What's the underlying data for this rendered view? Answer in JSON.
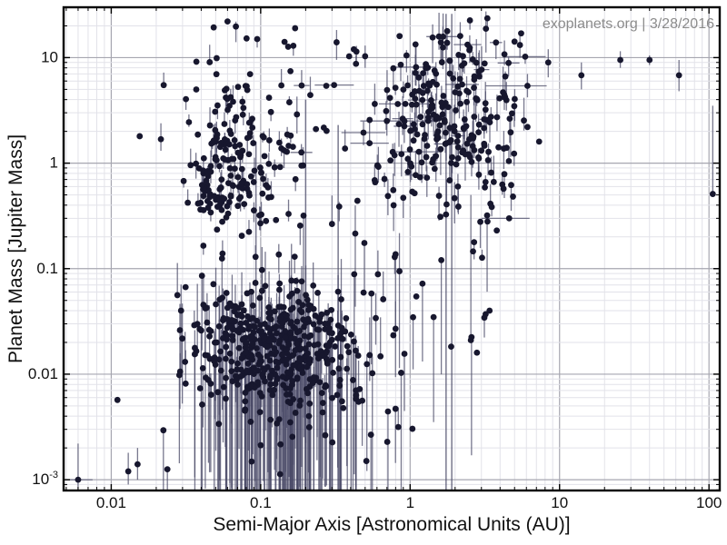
{
  "watermark": {
    "text": "exoplanets.org | 3/28/2016",
    "color": "#8b8b8b"
  },
  "chart_data": {
    "type": "scatter",
    "title": "",
    "xlabel": "Semi-Major Axis [Astronomical Units (AU)]",
    "ylabel": "Planet Mass [Jupiter Mass]",
    "x_scale": "log",
    "y_scale": "log",
    "xlim": [
      0.0048,
      118
    ],
    "ylim": [
      0.00079,
      30
    ],
    "grid": true,
    "legend": "none",
    "x_ticks": [
      {
        "v": 0.01,
        "label": "0.01"
      },
      {
        "v": 0.1,
        "label": "0.1"
      },
      {
        "v": 1,
        "label": "1"
      },
      {
        "v": 10,
        "label": "10"
      },
      {
        "v": 100,
        "label": "100"
      }
    ],
    "y_ticks": [
      {
        "v": 10,
        "label": "10"
      },
      {
        "v": 1,
        "label": "1"
      },
      {
        "v": 0.1,
        "label": "0.1"
      },
      {
        "v": 0.01,
        "label": "0.01"
      },
      {
        "v": 0.001,
        "label": "10",
        "sup": "-3"
      }
    ],
    "description": "Mass vs semi-major axis for ~1000 confirmed exoplanets: a hot-Jupiter cluster near 0.05 AU / 1 MJup, a dense low-mass cluster near 0.1 AU / 0.02 MJup with long downward mass error bars, and a giant-planet cluster near 1-4 AU / 1-10 MJup, plus sparse wide-orbit outliers to ~100 AU.",
    "style": {
      "point_color": "#17172e",
      "error_color": "#4b4b68",
      "error_opacity": 0.75,
      "grid_minor": "#e2e2e9",
      "grid_major": "#a6a6b0",
      "frame_color": "#000000",
      "tick_color": "#000000",
      "text_color": "#111111",
      "background": "#ffffff",
      "point_radius": 3.4
    },
    "seed": 42,
    "point_clusters": [
      {
        "name": "hot_jupiters_core",
        "n": 120,
        "x": {
          "type": "normal",
          "mu": -1.23,
          "sd": 0.14,
          "min": -1.72,
          "max": -0.8
        },
        "y": {
          "type": "normal",
          "mu": -0.08,
          "sd": 0.32,
          "min": -1.05,
          "max": 1.0
        },
        "err": {
          "p_down": 0.45,
          "down": [
            0.04,
            0.16
          ],
          "p_up": 0.45,
          "up": [
            0.04,
            0.16
          ],
          "p_x": 0,
          "xe": [
            0,
            0
          ]
        }
      },
      {
        "name": "hot_jupiters_halo",
        "n": 75,
        "x": {
          "type": "normal",
          "mu": -1.12,
          "sd": 0.26,
          "min": -1.8,
          "max": -0.55
        },
        "y": {
          "type": "normal",
          "mu": 0.3,
          "sd": 0.55,
          "min": -1.0,
          "max": 1.35
        },
        "err": {
          "p_down": 0.35,
          "down": [
            0.04,
            0.18
          ],
          "p_up": 0.35,
          "up": [
            0.04,
            0.18
          ],
          "p_x": 0,
          "xe": [
            0,
            0
          ]
        }
      },
      {
        "name": "low_mass_core",
        "n": 340,
        "x": {
          "type": "normal",
          "mu": -0.97,
          "sd": 0.25,
          "min": -1.6,
          "max": -0.25
        },
        "y": {
          "type": "normal",
          "mu": -1.72,
          "sd": 0.32,
          "min": -2.5,
          "max": -1.05
        },
        "err": {
          "p_down": 0.55,
          "down": [
            0.2,
            2.3
          ],
          "p_up": 0.4,
          "up": [
            0.08,
            0.45
          ],
          "p_x": 0,
          "xe": [
            0,
            0
          ]
        }
      },
      {
        "name": "low_mass_halo",
        "n": 140,
        "x": {
          "type": "normal",
          "mu": -0.8,
          "sd": 0.45,
          "min": -1.7,
          "max": 0.15
        },
        "y": {
          "type": "normal",
          "mu": -1.9,
          "sd": 0.55,
          "min": -3.05,
          "max": -1.0
        },
        "err": {
          "p_down": 0.5,
          "down": [
            0.15,
            2.0
          ],
          "p_up": 0.35,
          "up": [
            0.08,
            0.4
          ],
          "p_x": 0,
          "xe": [
            0,
            0
          ]
        }
      },
      {
        "name": "giants_core",
        "n": 210,
        "x": {
          "type": "normal",
          "mu": 0.27,
          "sd": 0.26,
          "min": -0.3,
          "max": 0.82
        },
        "y": {
          "type": "normal",
          "mu": 0.38,
          "sd": 0.45,
          "min": -0.6,
          "max": 1.3
        },
        "err": {
          "p_down": 0.55,
          "down": [
            0.05,
            0.25
          ],
          "p_up": 0.55,
          "up": [
            0.05,
            0.25
          ],
          "p_x": 0.07,
          "xe": [
            0.03,
            0.2
          ]
        }
      },
      {
        "name": "giants_top_band",
        "n": 25,
        "x": {
          "type": "normal",
          "mu": 0.35,
          "sd": 0.28,
          "min": -0.15,
          "max": 0.8
        },
        "y": {
          "type": "normal",
          "mu": 0.95,
          "sd": 0.2,
          "min": 0.55,
          "max": 1.38
        },
        "err": {
          "p_down": 0.5,
          "down": [
            0.04,
            0.15
          ],
          "p_up": 0.5,
          "up": [
            0.04,
            0.15
          ],
          "p_x": 0.05,
          "xe": [
            0.03,
            0.15
          ]
        }
      },
      {
        "name": "mid_background",
        "n": 45,
        "x": {
          "type": "uniform",
          "min": -0.9,
          "max": 0.5
        },
        "y": {
          "type": "normal",
          "mu": 0.4,
          "sd": 0.55,
          "min": -0.9,
          "max": 1.3
        },
        "err": {
          "p_down": 0.4,
          "down": [
            0.04,
            0.2
          ],
          "p_up": 0.4,
          "up": [
            0.04,
            0.2
          ],
          "p_x": 0.03,
          "xe": [
            0.03,
            0.15
          ]
        }
      },
      {
        "name": "wide_low_mass",
        "n": 40,
        "x": {
          "type": "uniform",
          "min": -1.3,
          "max": 0.6
        },
        "y": {
          "type": "normal",
          "mu": -1.1,
          "sd": 0.7,
          "min": -2.2,
          "max": -0.3
        },
        "err": {
          "p_down": 0.5,
          "down": [
            0.1,
            1.2
          ],
          "p_up": 0.3,
          "up": [
            0.05,
            0.3
          ],
          "p_x": 0,
          "xe": [
            0,
            0
          ]
        }
      }
    ],
    "notable_points": [
      {
        "x": 0.006,
        "y": 0.001,
        "ylo": 0.0008,
        "yhi": 0.0022,
        "xlo": 0.005,
        "xhi": 0.0075
      },
      {
        "x": 0.011,
        "y": 0.0057
      },
      {
        "x": 0.013,
        "y": 0.0012,
        "ylo": 0.0009,
        "yhi": 0.0018
      },
      {
        "x": 0.015,
        "y": 0.0014,
        "ylo": 0.001,
        "yhi": 0.002
      },
      {
        "x": 0.0155,
        "y": 1.8
      },
      {
        "x": 0.06,
        "y": 22
      },
      {
        "x": 0.17,
        "y": 19
      },
      {
        "x": 0.31,
        "y": 5.5,
        "xlo": 0.23,
        "xhi": 0.42
      },
      {
        "x": 0.42,
        "y": 12
      },
      {
        "x": 0.5,
        "y": 10.3,
        "ylo": 8,
        "yhi": 13
      },
      {
        "x": 0.85,
        "y": 16
      },
      {
        "x": 2.55,
        "y": 0.021,
        "ylo": 0.021,
        "yhi": 0.5
      },
      {
        "x": 2.8,
        "y": 0.016
      },
      {
        "x": 3.2,
        "y": 0.037
      },
      {
        "x": 3.4,
        "y": 0.04
      },
      {
        "x": 3.8,
        "y": 0.23
      },
      {
        "x": 4.6,
        "y": 0.3,
        "xlo": 3.0,
        "xhi": 6.3
      },
      {
        "x": 6.1,
        "y": 5.4,
        "xlo": 3.2,
        "xhi": 8.2,
        "ylo": 4.2,
        "yhi": 7.0
      },
      {
        "x": 6.1,
        "y": 2.2
      },
      {
        "x": 7.3,
        "y": 1.6
      },
      {
        "x": 8.4,
        "y": 9.0,
        "ylo": 6.5,
        "yhi": 12
      },
      {
        "x": 14,
        "y": 6.8,
        "ylo": 5,
        "yhi": 9
      },
      {
        "x": 25.5,
        "y": 9.5,
        "ylo": 8,
        "yhi": 11.5
      },
      {
        "x": 40,
        "y": 9.5,
        "ylo": 8.5,
        "yhi": 10.5
      },
      {
        "x": 63,
        "y": 6.8,
        "ylo": 4.8,
        "yhi": 9.5
      },
      {
        "x": 106,
        "y": 0.51,
        "ylo": 0.51,
        "yhi": 3.5
      }
    ],
    "tall_error_lines": [
      {
        "x": 0.093,
        "y1": 0.0008,
        "y2": 1.6
      },
      {
        "x": 0.2,
        "y1": 0.0008,
        "y2": 4.0
      },
      {
        "x": 0.33,
        "y1": 0.0008,
        "y2": 2.3
      },
      {
        "x": 1.74,
        "y1": 0.0008,
        "y2": 26
      },
      {
        "x": 1.9,
        "y1": 0.0008,
        "y2": 26
      }
    ]
  }
}
